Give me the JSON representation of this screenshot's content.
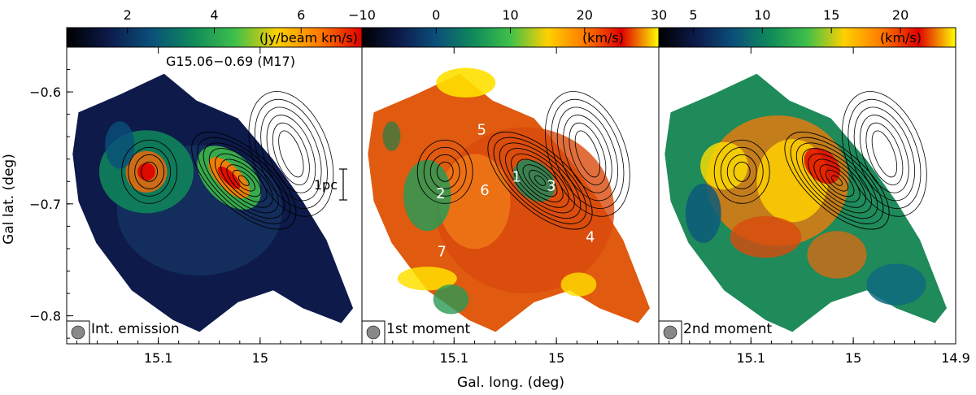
{
  "figure": {
    "source_label": "G15.06−0.69 (M17)",
    "xlabel": "Gal. long. (deg)",
    "ylabel": "Gal lat. (deg)",
    "scale_bar_label": "1pc",
    "colors": {
      "contour": "#000000",
      "beam": "#888888",
      "frame": "#000000",
      "label_highlight": "#ffffff"
    }
  },
  "chart_data": [
    {
      "type": "heatmap",
      "panel": "Int. emission",
      "corner_label": "Int. emission",
      "colorbar_unit": "(Jy/beam km/s)",
      "colorbar_ticks": [
        "2",
        "4",
        "6"
      ],
      "colorbar_range": [
        0.6,
        7.4
      ],
      "colormap": [
        "#000000",
        "#0d1a4a",
        "#0a4f7a",
        "#0f8a5a",
        "#3fc04a",
        "#ffd000",
        "#ff7a00",
        "#e00000"
      ],
      "x_ticks": [
        "15.1",
        "15",
        "14.9"
      ],
      "y_ticks": [
        "−0.6",
        "−0.7",
        "−0.8"
      ],
      "xlim": [
        15.19,
        14.9
      ],
      "ylim": [
        -0.825,
        -0.56
      ],
      "peaks": [
        {
          "l": 15.028,
          "b": -0.683,
          "v": 7.2
        },
        {
          "l": 15.095,
          "b": -0.675,
          "v": 6.1
        }
      ]
    },
    {
      "type": "heatmap",
      "panel": "1st moment",
      "corner_label": "1st moment",
      "colorbar_unit": "(km/s)",
      "colorbar_ticks": [
        "−10",
        "0",
        "10",
        "20",
        "30"
      ],
      "colorbar_range": [
        -10,
        30
      ],
      "colormap": [
        "#000000",
        "#0d1a4a",
        "#0a4f7a",
        "#0f8a5a",
        "#3fc04a",
        "#ffd000",
        "#ff7a00",
        "#e00000",
        "#ffff00"
      ],
      "x_ticks": [
        "15.1",
        "15",
        "14.9"
      ],
      "y_ticks": [
        "−0.6",
        "−0.7",
        "−0.8"
      ],
      "xlim": [
        15.19,
        14.9
      ],
      "ylim": [
        -0.825,
        -0.56
      ],
      "region_labels": [
        {
          "label": "1",
          "l": 15.039,
          "b": -0.68
        },
        {
          "label": "2",
          "l": 15.113,
          "b": -0.695
        },
        {
          "label": "3",
          "l": 15.005,
          "b": -0.688
        },
        {
          "label": "4",
          "l": 14.967,
          "b": -0.734
        },
        {
          "label": "5",
          "l": 15.073,
          "b": -0.638
        },
        {
          "label": "6",
          "l": 15.07,
          "b": -0.692
        },
        {
          "label": "7",
          "l": 15.112,
          "b": -0.747
        }
      ]
    },
    {
      "type": "heatmap",
      "panel": "2nd moment",
      "corner_label": "2nd moment",
      "colorbar_unit": "(km/s)",
      "colorbar_ticks": [
        "5",
        "10",
        "15",
        "20"
      ],
      "colorbar_range": [
        2.5,
        24
      ],
      "colormap": [
        "#000000",
        "#0d1a4a",
        "#0a4f7a",
        "#0f8a5a",
        "#3fc04a",
        "#ffd000",
        "#ff7a00",
        "#e00000",
        "#ffff00"
      ],
      "x_ticks": [
        "15.1",
        "15",
        "14.9"
      ],
      "y_ticks": [
        "−0.6",
        "−0.7",
        "−0.8"
      ],
      "xlim": [
        15.19,
        14.9
      ],
      "ylim": [
        -0.825,
        -0.56
      ]
    }
  ]
}
